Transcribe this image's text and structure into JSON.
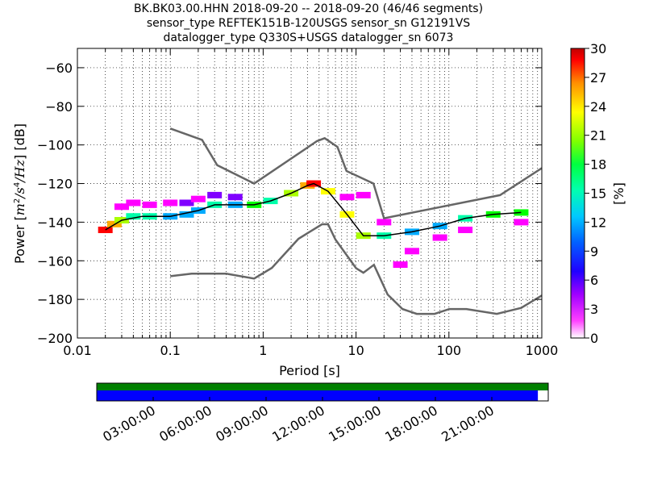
{
  "title": {
    "line1": "BK.BK03.00.HHN   2018-09-20 -- 2018-09-20  (46/46 segments)",
    "line2": "sensor_type REFTEK151B-120USGS sensor_sn G12191VS",
    "line3": "datalogger_type Q330S+USGS datalogger_sn 6073"
  },
  "axes": {
    "xlabel": "Period [s]",
    "ylabel": "Power [m²/s⁴/Hz] [dB]",
    "ylabel_parts": {
      "prefix": "Power [",
      "m": "m",
      "sq": "2",
      "slash1": "/",
      "s": "s",
      "four": "4",
      "slash2": "/",
      "hz": "Hz",
      "suffix": "] [dB]"
    },
    "x_scale": "log",
    "xlim": [
      0.01,
      1000
    ],
    "ylim": [
      -200,
      -50
    ],
    "x_ticks": [
      "0.01",
      "0.1",
      "1",
      "10",
      "100",
      "1000"
    ],
    "y_ticks": [
      "−60",
      "−80",
      "−100",
      "−120",
      "−140",
      "−160",
      "−180",
      "−200"
    ],
    "grid": true
  },
  "colorbar": {
    "label": "[%]",
    "ticks": [
      "30",
      "27",
      "24",
      "21",
      "18",
      "15",
      "12",
      "9",
      "6",
      "3",
      "0"
    ],
    "range": [
      0,
      30
    ],
    "colormap": [
      "#ffffff",
      "#ff00ff",
      "#8000ff",
      "#0000ff",
      "#00aaff",
      "#00ffaa",
      "#00ff00",
      "#aaff00",
      "#ffff00",
      "#ffaa00",
      "#ff0000",
      "#cc0000"
    ]
  },
  "chart_data": {
    "type": "heatmap",
    "title": "BK.BK03.00.HHN   2018-09-20 -- 2018-09-20  (46/46 segments)",
    "xlabel": "Period [s]",
    "ylabel": "Power [m2/s4/Hz] [dB]",
    "x_scale": "log",
    "xlim": [
      0.01,
      1000
    ],
    "ylim": [
      -200,
      -50
    ],
    "series": [
      {
        "name": "",
        "role": "NHNM",
        "color": "#666666",
        "x": [
          0.1,
          0.22,
          0.32,
          0.8,
          3.8,
          4.6,
          6.3,
          7.9,
          15.4,
          20,
          354.8,
          1000
        ],
        "y": [
          -91.5,
          -97.4,
          -110.5,
          -120,
          -98,
          -96.5,
          -101,
          -113.5,
          -120,
          -138,
          -126,
          -112
        ]
      },
      {
        "name": "",
        "role": "NLNM",
        "color": "#666666",
        "x": [
          0.1,
          0.17,
          0.4,
          0.8,
          1.24,
          2.4,
          4.3,
          5,
          6,
          10,
          12,
          15.6,
          21.9,
          31.6,
          45,
          70,
          101,
          154,
          328,
          600,
          1000
        ],
        "y": [
          -168,
          -166.7,
          -166.7,
          -169.2,
          -163.7,
          -148.6,
          -141.1,
          -141.1,
          -149,
          -163.8,
          -166.2,
          -162.1,
          -177.5,
          -185,
          -187.5,
          -187.5,
          -185,
          -185,
          -187.5,
          -184.4,
          -178
        ]
      },
      {
        "name": "",
        "role": "mean",
        "color": "#000000",
        "x": [
          0.02,
          0.03,
          0.05,
          0.1,
          0.2,
          0.3,
          0.5,
          0.8,
          1.2,
          2,
          3,
          3.5,
          5,
          8,
          12,
          20,
          40,
          80,
          150,
          300,
          600
        ],
        "y": [
          -144,
          -139,
          -137,
          -137,
          -134,
          -131,
          -131,
          -131,
          -129,
          -125,
          -121,
          -120,
          -124,
          -136,
          -147,
          -147,
          -145,
          -142,
          -138,
          -136,
          -135
        ]
      }
    ],
    "density": [
      {
        "x": 0.02,
        "y": -144,
        "pct": 28
      },
      {
        "x": 0.025,
        "y": -141,
        "pct": 24
      },
      {
        "x": 0.03,
        "y": -139,
        "pct": 18
      },
      {
        "x": 0.03,
        "y": -132,
        "pct": 3
      },
      {
        "x": 0.04,
        "y": -137,
        "pct": 14
      },
      {
        "x": 0.04,
        "y": -130,
        "pct": 3
      },
      {
        "x": 0.06,
        "y": -137,
        "pct": 13
      },
      {
        "x": 0.06,
        "y": -131,
        "pct": 4
      },
      {
        "x": 0.1,
        "y": -137,
        "pct": 12
      },
      {
        "x": 0.1,
        "y": -130,
        "pct": 4
      },
      {
        "x": 0.15,
        "y": -136,
        "pct": 10
      },
      {
        "x": 0.15,
        "y": -130,
        "pct": 5
      },
      {
        "x": 0.2,
        "y": -134,
        "pct": 11
      },
      {
        "x": 0.2,
        "y": -128,
        "pct": 4
      },
      {
        "x": 0.3,
        "y": -131,
        "pct": 14
      },
      {
        "x": 0.3,
        "y": -126,
        "pct": 6
      },
      {
        "x": 0.5,
        "y": -131,
        "pct": 12
      },
      {
        "x": 0.5,
        "y": -127,
        "pct": 6
      },
      {
        "x": 0.8,
        "y": -131,
        "pct": 16
      },
      {
        "x": 1.2,
        "y": -129,
        "pct": 14
      },
      {
        "x": 2,
        "y": -125,
        "pct": 18
      },
      {
        "x": 3,
        "y": -121,
        "pct": 24
      },
      {
        "x": 3.5,
        "y": -120,
        "pct": 27
      },
      {
        "x": 5,
        "y": -124,
        "pct": 22
      },
      {
        "x": 8,
        "y": -136,
        "pct": 21
      },
      {
        "x": 8,
        "y": -127,
        "pct": 4
      },
      {
        "x": 12,
        "y": -147,
        "pct": 20
      },
      {
        "x": 12,
        "y": -126,
        "pct": 3
      },
      {
        "x": 20,
        "y": -147,
        "pct": 14
      },
      {
        "x": 20,
        "y": -140,
        "pct": 4
      },
      {
        "x": 30,
        "y": -162,
        "pct": 2
      },
      {
        "x": 40,
        "y": -145,
        "pct": 12
      },
      {
        "x": 40,
        "y": -155,
        "pct": 3
      },
      {
        "x": 80,
        "y": -142,
        "pct": 12
      },
      {
        "x": 80,
        "y": -148,
        "pct": 4
      },
      {
        "x": 150,
        "y": -138,
        "pct": 14
      },
      {
        "x": 150,
        "y": -144,
        "pct": 3
      },
      {
        "x": 300,
        "y": -136,
        "pct": 15
      },
      {
        "x": 600,
        "y": -135,
        "pct": 16
      },
      {
        "x": 600,
        "y": -140,
        "pct": 3
      }
    ]
  },
  "coverage": {
    "tick_labels": [
      "03:00:00",
      "06:00:00",
      "09:00:00",
      "12:00:00",
      "15:00:00",
      "18:00:00",
      "21:00:00"
    ],
    "data_coverage_fraction": 1.0,
    "segment_coverage_fraction": 0.977,
    "data_color": "#008000",
    "segment_color": "#0000ff"
  }
}
